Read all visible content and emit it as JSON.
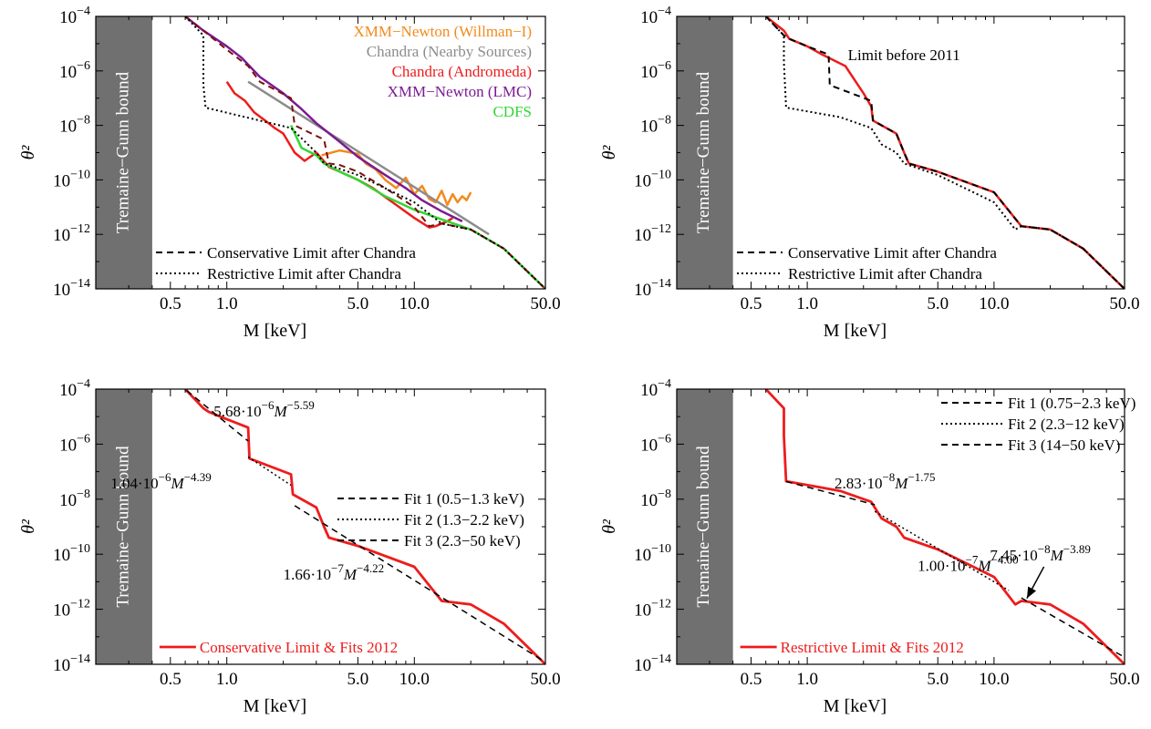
{
  "figure": {
    "tg_label": "Tremaine−Gunn bound",
    "colors": {
      "xmm_willman": "#f28a1d",
      "chandra_nearby": "#8c8c8c",
      "chandra_andromeda": "#ee1c1c",
      "xmm_lmc": "#7b1b91",
      "cdfs": "#33d633",
      "dark_red": "#7a1010",
      "fill": "#707070"
    }
  },
  "chart_data": [
    {
      "type": "line",
      "panel": "top-left",
      "xlabel": "M [keV]",
      "ylabel": "θ²",
      "xscale": "log",
      "yscale": "log",
      "xlim": [
        0.2,
        50
      ],
      "ylim": [
        1e-14,
        0.0001
      ],
      "xticks": [
        {
          "v": 0.5,
          "label": "0.5"
        },
        {
          "v": 1,
          "label": "1.0"
        },
        {
          "v": 5,
          "label": "5.0"
        },
        {
          "v": 10,
          "label": "10.0"
        },
        {
          "v": 50,
          "label": "50.0"
        }
      ],
      "tg_bound_max": 0.4,
      "legend": [
        {
          "name": "XMM−Newton (Willman−I)",
          "color": "#f28a1d"
        },
        {
          "name": "Chandra (Nearby Sources)",
          "color": "#8c8c8c"
        },
        {
          "name": "Chandra (Andromeda)",
          "color": "#ee1c1c"
        },
        {
          "name": "XMM−Newton (LMC)",
          "color": "#7b1b91"
        },
        {
          "name": "CDFS",
          "color": "#33d633"
        }
      ],
      "legend_lower": [
        {
          "name": "Conservative Limit after Chandra",
          "style": "dashed"
        },
        {
          "name": "Restrictive Limit after Chandra",
          "style": "dotted"
        }
      ],
      "series": [
        {
          "name": "XMM−Newton (Willman−I)",
          "color": "#f28a1d",
          "width": 2.5,
          "x": [
            3.2,
            4.0,
            5.0,
            5.5,
            6.2,
            7.0,
            8.0,
            9.0,
            10.0,
            11.0,
            12.0,
            13.0,
            14.0,
            15.0,
            16.0,
            17.0,
            18.0,
            19.0,
            20.0
          ],
          "y": [
            8e-10,
            1.2e-09,
            9e-10,
            4e-10,
            2.5e-10,
            1e-10,
            5e-11,
            1.2e-10,
            3e-11,
            6e-11,
            2e-11,
            1.5e-11,
            4e-11,
            1.2e-11,
            3e-11,
            1.5e-11,
            2.5e-11,
            1.8e-11,
            3.5e-11
          ]
        },
        {
          "name": "Chandra (Nearby Sources)",
          "color": "#8c8c8c",
          "width": 2.5,
          "x": [
            1.3,
            25
          ],
          "y": [
            4e-07,
            1e-12
          ]
        },
        {
          "name": "Chandra (Andromeda)",
          "color": "#ee1c1c",
          "width": 2.5,
          "x": [
            1.0,
            1.1,
            1.25,
            1.4,
            1.6,
            1.8,
            2.0,
            2.3,
            2.6,
            3.0,
            3.5,
            4.0,
            5.0,
            6.0,
            8.0,
            10.0,
            12.0,
            13.0,
            14.0,
            15.0,
            16.0
          ],
          "y": [
            4e-07,
            1.5e-07,
            8e-08,
            3e-08,
            1.5e-08,
            8e-09,
            5e-09,
            1e-09,
            5e-10,
            1e-09,
            3e-10,
            2e-10,
            1e-10,
            5e-11,
            1.2e-11,
            4e-12,
            1.8e-12,
            2e-12,
            2.5e-12,
            3e-12,
            4e-12
          ]
        },
        {
          "name": "XMM−Newton (LMC)",
          "color": "#7b1b91",
          "width": 2.5,
          "x": [
            0.6,
            0.75,
            1.0,
            1.2,
            1.5,
            2.0,
            2.5,
            3.0,
            4.0,
            5.0,
            7.0,
            9.0,
            11.0,
            14.0,
            18.0
          ],
          "y": [
            0.0001,
            3e-05,
            8e-06,
            3e-06,
            6e-07,
            1.5e-07,
            4e-08,
            1.2e-08,
            2.5e-09,
            7e-10,
            1.5e-10,
            5e-11,
            1.8e-11,
            7e-12,
            3e-12
          ]
        },
        {
          "name": "CDFS",
          "color": "#33d633",
          "width": 2.5,
          "x": [
            2.2,
            2.5,
            3.0,
            3.3,
            4.0,
            5.0,
            7.0,
            10.0,
            15.0,
            20.0,
            30.0,
            50.0
          ],
          "y": [
            1e-08,
            1.5e-09,
            8e-10,
            4e-10,
            2e-10,
            1e-10,
            2.5e-11,
            8e-12,
            3e-12,
            1.5e-12,
            3e-13,
            1e-14
          ]
        },
        {
          "name": "Conservative Limit after Chandra",
          "color": "#7a1010",
          "dash": "7,5",
          "width": 2,
          "x": [
            0.6,
            0.75,
            1.0,
            1.3,
            1.5,
            2.2,
            2.3,
            3.3,
            3.5,
            4.0,
            5.0,
            7.0,
            10.0,
            12.0,
            14.0,
            20.0,
            30.0,
            50.0
          ],
          "y": [
            0.0001,
            3e-05,
            6e-06,
            1.5e-06,
            4e-07,
            1e-07,
            1e-08,
            3e-09,
            4e-10,
            3.5e-10,
            2e-10,
            5e-11,
            1e-11,
            2e-12,
            2.5e-12,
            1.5e-12,
            3e-13,
            1e-14
          ]
        },
        {
          "name": "Restrictive Limit after Chandra",
          "color": "#000000",
          "dash": "2,3",
          "width": 2,
          "x": [
            0.6,
            0.75,
            0.75,
            0.77,
            2.2,
            3.0,
            3.3,
            5.0,
            10.0,
            14.0,
            20.0,
            30.0,
            50.0
          ],
          "y": [
            0.0001,
            2e-05,
            3e-07,
            4.5e-08,
            8e-09,
            1e-09,
            4e-10,
            1.5e-10,
            1.5e-11,
            2.5e-12,
            1.5e-12,
            3e-13,
            1e-14
          ]
        }
      ]
    },
    {
      "type": "line",
      "panel": "top-right",
      "xlabel": "M [keV]",
      "ylabel": "θ²",
      "xscale": "log",
      "yscale": "log",
      "xlim": [
        0.2,
        50
      ],
      "ylim": [
        1e-14,
        0.0001
      ],
      "xticks": [
        {
          "v": 0.5,
          "label": "0.5"
        },
        {
          "v": 1,
          "label": "1.0"
        },
        {
          "v": 5,
          "label": "5.0"
        },
        {
          "v": 10,
          "label": "10.0"
        },
        {
          "v": 50,
          "label": "50.0"
        }
      ],
      "tg_bound_max": 0.4,
      "legend_lower": [
        {
          "name": "Conservative Limit after Chandra",
          "style": "dashed"
        },
        {
          "name": "Restrictive Limit after Chandra",
          "style": "dotted"
        }
      ],
      "annotations": [
        {
          "text": "Limit before 2011",
          "x": 1.65,
          "y": 2.5e-06,
          "color": "#ee1c1c"
        }
      ],
      "series": [
        {
          "name": "Limit before 2011",
          "color": "#ee1c1c",
          "width": 2.5,
          "x": [
            0.6,
            0.75,
            0.8,
            1.0,
            1.2,
            1.6,
            2.0,
            2.2,
            2.25,
            3.0,
            3.3,
            3.5,
            5.0,
            10.0,
            14.0,
            20.0,
            30.0,
            50.0
          ],
          "y": [
            0.0001,
            3e-05,
            1.5e-05,
            8e-06,
            4e-06,
            1.5e-06,
            1.5e-07,
            5e-08,
            1.5e-08,
            5e-09,
            1e-09,
            4e-10,
            2e-10,
            3.5e-11,
            2e-12,
            1.5e-12,
            3e-13,
            1e-14
          ]
        },
        {
          "name": "Conservative Limit after Chandra",
          "color": "#000000",
          "dash": "7,5",
          "width": 2,
          "x": [
            0.6,
            0.75,
            0.8,
            1.0,
            1.3,
            1.32,
            2.2,
            2.25,
            3.0,
            3.3,
            3.5,
            5.0,
            10.0,
            14.0,
            20.0,
            30.0,
            50.0
          ],
          "y": [
            0.0001,
            2e-05,
            1.5e-05,
            8e-06,
            4e-06,
            3e-07,
            8e-08,
            1.5e-08,
            5e-09,
            1e-09,
            4e-10,
            2e-10,
            3.5e-11,
            2e-12,
            1.5e-12,
            3e-13,
            1e-14
          ]
        },
        {
          "name": "Restrictive Limit after Chandra",
          "color": "#000000",
          "dash": "2,3",
          "width": 2,
          "x": [
            0.6,
            0.75,
            0.75,
            0.77,
            1.5,
            2.2,
            2.5,
            3.0,
            3.3,
            5.0,
            10.0,
            13.0,
            14.0,
            20.0,
            30.0,
            50.0
          ],
          "y": [
            0.0001,
            2e-05,
            2e-06,
            4.5e-08,
            2e-08,
            8e-09,
            2e-09,
            1e-09,
            4e-10,
            1.5e-10,
            1.5e-11,
            1.5e-12,
            2e-12,
            1.5e-12,
            3e-13,
            1e-14
          ]
        }
      ]
    },
    {
      "type": "line",
      "panel": "bottom-left",
      "xlabel": "M [keV]",
      "ylabel": "θ²",
      "xscale": "log",
      "yscale": "log",
      "xlim": [
        0.2,
        50
      ],
      "ylim": [
        1e-14,
        0.0001
      ],
      "xticks": [
        {
          "v": 0.5,
          "label": "0.5"
        },
        {
          "v": 1,
          "label": "1.0"
        },
        {
          "v": 5,
          "label": "5.0"
        },
        {
          "v": 10,
          "label": "10.0"
        },
        {
          "v": 50,
          "label": "50.0"
        }
      ],
      "tg_bound_max": 0.4,
      "legend_fits": [
        {
          "name": "Fit 1 (0.5−1.3 keV)",
          "style": "dashed"
        },
        {
          "name": "Fit 2 (1.3−2.2 keV)",
          "style": "dotted"
        },
        {
          "name": "Fit 3 (2.3−50 keV)",
          "style": "dashed"
        }
      ],
      "legend_main": {
        "name": "Conservative Limit & Fits 2012",
        "color": "#ee1c1c"
      },
      "annotations": [
        {
          "base": "5.68·10",
          "exp": "−6",
          "mid": "M",
          "pow": "−5.59",
          "x": 0.85,
          "y": 1e-05
        },
        {
          "base": "1.04·10",
          "exp": "−6",
          "mid": "M",
          "pow": "−4.39",
          "x": 0.24,
          "y": 2.5e-08
        },
        {
          "base": "1.66·10",
          "exp": "−7",
          "mid": "M",
          "pow": "−4.22",
          "x": 2.0,
          "y": 1.2e-11
        }
      ],
      "series": [
        {
          "name": "Conservative Limit & Fits 2012",
          "color": "#ee1c1c",
          "width": 2.8,
          "x": [
            0.6,
            0.75,
            0.8,
            1.0,
            1.3,
            1.32,
            2.2,
            2.25,
            3.0,
            3.3,
            3.5,
            5.0,
            10.0,
            14.0,
            20.0,
            30.0,
            50.0
          ],
          "y": [
            0.0001,
            2e-05,
            1.5e-05,
            8e-06,
            4e-06,
            3e-07,
            8e-08,
            1.5e-08,
            5e-09,
            1e-09,
            4e-10,
            2e-10,
            3.5e-11,
            2e-12,
            1.5e-12,
            3e-13,
            1e-14
          ]
        },
        {
          "name": "Fit 1 (0.5−1.3 keV)",
          "color": "#000000",
          "dash": "7,5",
          "width": 1.5,
          "x": [
            0.55,
            1.3
          ],
          "y": [
            0.00016,
            1.3e-06
          ]
        },
        {
          "name": "Fit 2 (1.3−2.2 keV)",
          "color": "#000000",
          "dash": "2,3",
          "width": 1.5,
          "x": [
            1.3,
            2.2
          ],
          "y": [
            3.4e-07,
            3.2e-08
          ]
        },
        {
          "name": "Fit 3 (2.3−50 keV)",
          "color": "#000000",
          "dash": "7,5",
          "width": 1.5,
          "x": [
            2.3,
            50
          ],
          "y": [
            5.8e-09,
            1.2e-14
          ]
        }
      ]
    },
    {
      "type": "line",
      "panel": "bottom-right",
      "xlabel": "M [keV]",
      "ylabel": "θ²",
      "xscale": "log",
      "yscale": "log",
      "xlim": [
        0.2,
        50
      ],
      "ylim": [
        1e-14,
        0.0001
      ],
      "xticks": [
        {
          "v": 0.5,
          "label": "0.5"
        },
        {
          "v": 1,
          "label": "1.0"
        },
        {
          "v": 5,
          "label": "5.0"
        },
        {
          "v": 10,
          "label": "10.0"
        },
        {
          "v": 50,
          "label": "50.0"
        }
      ],
      "tg_bound_max": 0.4,
      "legend_fits": [
        {
          "name": "Fit 1 (0.75−2.3 keV)",
          "style": "dashed"
        },
        {
          "name": "Fit 2 (2.3−12 keV)",
          "style": "dotted"
        },
        {
          "name": "Fit 3 (14−50 keV)",
          "style": "dashed"
        }
      ],
      "legend_main": {
        "name": "Restrictive Limit & Fits 2012",
        "color": "#ee1c1c"
      },
      "annotations": [
        {
          "base": "2.83·10",
          "exp": "−8",
          "mid": "M",
          "pow": "−1.75",
          "x": 1.4,
          "y": 2.5e-08
        },
        {
          "base": "1.00·10",
          "exp": "−7",
          "mid": "M",
          "pow": "−4.00",
          "x": 3.9,
          "y": 2.5e-11
        },
        {
          "base": "7.45·10",
          "exp": "−8",
          "mid": "M",
          "pow": "−3.89",
          "x": 9.5,
          "y": 6e-11
        }
      ],
      "arrow": {
        "from": [
          18.5,
          3.5e-11
        ],
        "to": [
          15.0,
          2.5e-12
        ]
      },
      "series": [
        {
          "name": "Restrictive Limit & Fits 2012",
          "color": "#ee1c1c",
          "width": 2.8,
          "x": [
            0.6,
            0.75,
            0.75,
            0.77,
            1.5,
            2.2,
            2.5,
            3.0,
            3.3,
            5.0,
            10.0,
            13.0,
            14.0,
            20.0,
            30.0,
            50.0
          ],
          "y": [
            0.0001,
            2e-05,
            2e-06,
            4.5e-08,
            2e-08,
            8e-09,
            2e-09,
            1e-09,
            4e-10,
            1.5e-10,
            1.5e-11,
            1.5e-12,
            2e-12,
            1.5e-12,
            3e-13,
            1e-14
          ]
        },
        {
          "name": "Fit 1 (0.75−2.3 keV)",
          "color": "#000000",
          "dash": "7,5",
          "width": 1.5,
          "x": [
            0.77,
            2.3
          ],
          "y": [
            4.4e-08,
            6.3e-09
          ]
        },
        {
          "name": "Fit 2 (2.3−12 keV)",
          "color": "#000000",
          "dash": "2,3",
          "width": 1.5,
          "x": [
            2.3,
            12
          ],
          "y": [
            3.6e-09,
            4.8e-12
          ]
        },
        {
          "name": "Fit 3 (14−50 keV)",
          "color": "#000000",
          "dash": "7,5",
          "width": 1.5,
          "x": [
            14,
            50
          ],
          "y": [
            2.6e-12,
            1.8e-14
          ]
        }
      ]
    }
  ]
}
